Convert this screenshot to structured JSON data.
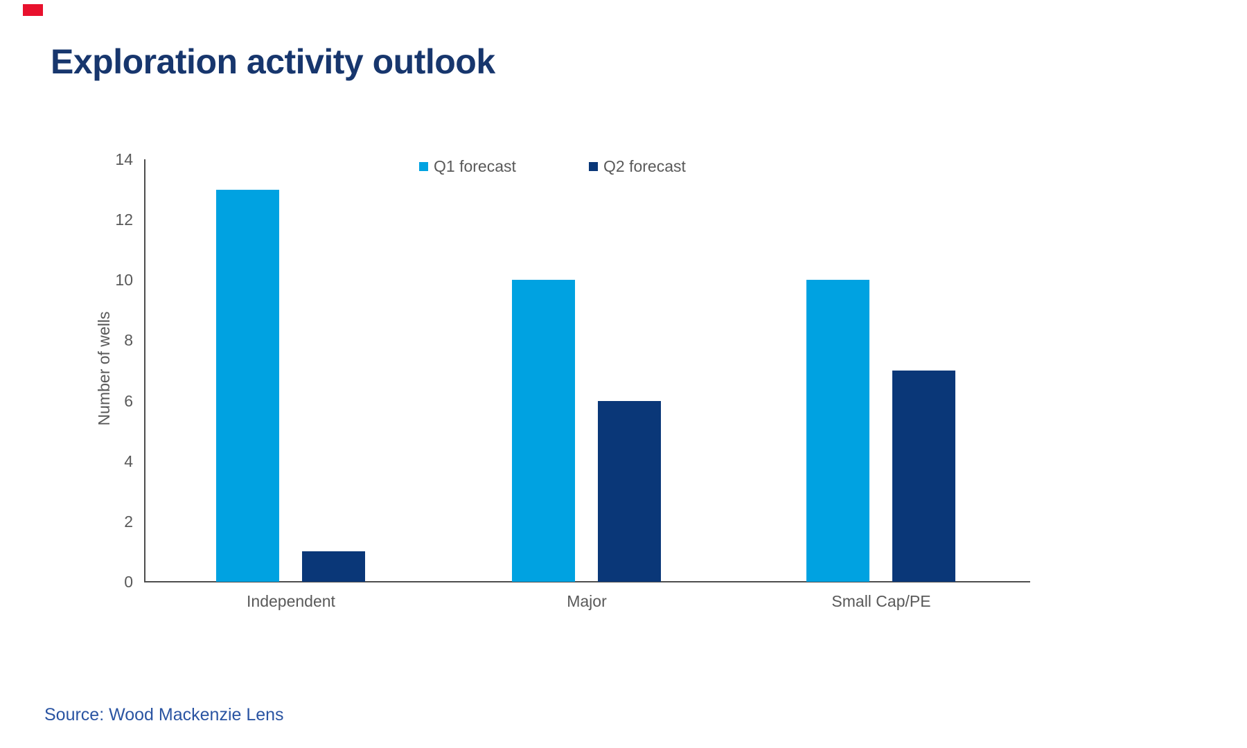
{
  "brand": {
    "mark_color": "#E8112D"
  },
  "header": {
    "title": "Exploration activity outlook",
    "title_color": "#17366D"
  },
  "footer": {
    "source_text": "Source: Wood Mackenzie Lens",
    "source_color": "#2A54A2"
  },
  "chart_data": {
    "type": "bar",
    "title": "Exploration activity outlook",
    "categories": [
      "Independent",
      "Major",
      "Small Cap/PE"
    ],
    "series": [
      {
        "name": "Q1 forecast",
        "color": "#00A2E1",
        "values": [
          13,
          10,
          10
        ]
      },
      {
        "name": "Q2 forecast",
        "color": "#0A3778",
        "values": [
          1,
          6,
          7
        ]
      }
    ],
    "xlabel": "",
    "ylabel": "Number of wells",
    "ylim": [
      0,
      14
    ],
    "yticks": [
      0,
      2,
      4,
      6,
      8,
      10,
      12,
      14
    ],
    "grid": false,
    "legend_position": "top-center",
    "axis_line_color": "#4D4D4D",
    "tick_label_color": "#595959"
  }
}
